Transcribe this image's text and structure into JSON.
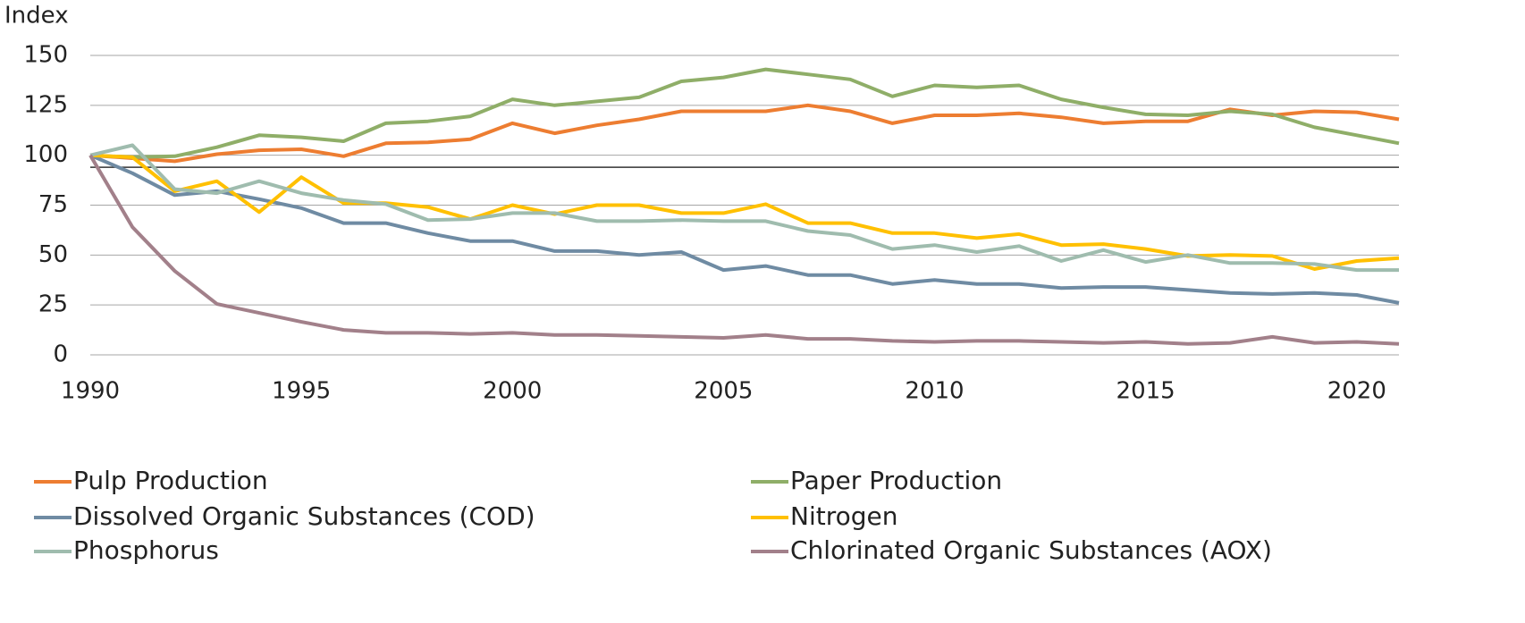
{
  "chart_data": {
    "type": "line",
    "y_label": "Index",
    "x": [
      1990,
      1991,
      1992,
      1993,
      1994,
      1995,
      1996,
      1997,
      1998,
      1999,
      2000,
      2001,
      2002,
      2003,
      2004,
      2005,
      2006,
      2007,
      2008,
      2009,
      2010,
      2011,
      2012,
      2013,
      2014,
      2015,
      2016,
      2017,
      2018,
      2019,
      2020,
      2021
    ],
    "xlim": [
      1990,
      2021
    ],
    "xticks": [
      1990,
      1995,
      2000,
      2005,
      2010,
      2015,
      2020
    ],
    "ylim": [
      0,
      150
    ],
    "yticks": [
      0,
      25,
      50,
      75,
      100,
      125,
      150
    ],
    "grid": true,
    "reference_line": 94,
    "legend": "bottom",
    "series": [
      {
        "name": "Pulp Production",
        "color": "#ed7d31",
        "values": [
          100,
          98.5,
          97,
          100.5,
          102.5,
          103,
          99.5,
          106,
          106.5,
          108,
          116,
          111,
          115,
          118,
          122,
          122,
          122,
          125,
          122,
          116,
          120,
          120,
          121,
          119,
          116,
          117,
          117,
          123,
          120,
          122,
          121.5,
          118
        ]
      },
      {
        "name": "Paper Production",
        "color": "#8fae68",
        "values": [
          100,
          99,
          99.5,
          104,
          110,
          109,
          107,
          116,
          117,
          119.5,
          128,
          125,
          127,
          129,
          137,
          139,
          143,
          140.5,
          138,
          129.5,
          135,
          134,
          135,
          128,
          124,
          120.5,
          120,
          122,
          120.5,
          114,
          110,
          106
        ]
      },
      {
        "name": "Dissolved Organic Substances (COD)",
        "color": "#6f8ba3",
        "values": [
          100,
          91,
          80,
          82,
          78,
          73.5,
          66,
          66,
          61,
          57,
          57,
          52,
          52,
          50,
          51.5,
          42.5,
          44.5,
          40,
          40,
          35.5,
          37.5,
          35.5,
          35.5,
          33.5,
          34,
          34,
          32.5,
          31,
          30.5,
          31,
          30,
          26
        ]
      },
      {
        "name": "Nitrogen",
        "color": "#ffc000",
        "values": [
          100,
          99,
          82,
          87,
          71.5,
          89,
          76,
          76,
          74,
          68,
          75,
          70.5,
          75,
          75,
          71,
          71,
          75.5,
          66,
          66,
          61,
          61,
          58.5,
          60.5,
          55,
          55.5,
          53,
          49.5,
          50,
          49.5,
          43,
          47,
          48.5
        ]
      },
      {
        "name": "Phosphorus",
        "color": "#9fbcae",
        "values": [
          100,
          105,
          83,
          81,
          87,
          81,
          77.5,
          75.5,
          67.5,
          68,
          71,
          71,
          67,
          67,
          67.5,
          67,
          67,
          62,
          60,
          53,
          55,
          51.5,
          54.5,
          47,
          52.5,
          46.5,
          50,
          46,
          46,
          45.5,
          42.5,
          42.5
        ]
      },
      {
        "name": "Chlorinated Organic Substances (AOX)",
        "color": "#a2808a",
        "values": [
          100,
          64,
          42,
          25.5,
          21,
          16.5,
          12.5,
          11,
          11,
          10.5,
          11,
          10,
          10,
          9.5,
          9,
          8.5,
          10,
          8,
          8,
          7,
          6.5,
          7,
          7,
          6.5,
          6,
          6.5,
          5.5,
          6,
          9,
          6,
          6.5,
          5.5
        ]
      }
    ]
  }
}
